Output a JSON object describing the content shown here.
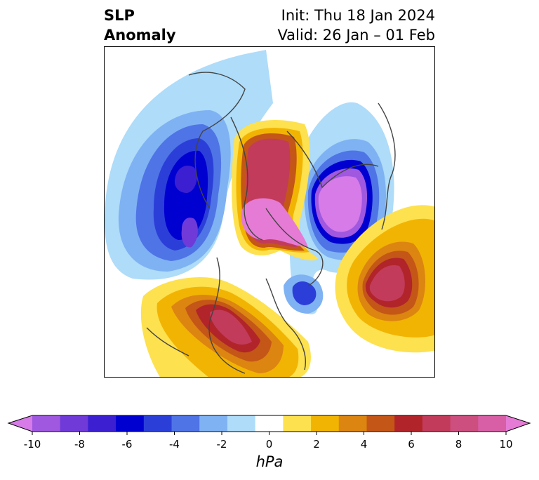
{
  "header": {
    "title_line1": "SLP",
    "title_line2": "Anomaly",
    "init": "Init: Thu 18 Jan 2024",
    "valid": "Valid: 26 Jan – 01 Feb"
  },
  "colorbar": {
    "unit": "hPa",
    "ticks": [
      "-10",
      "-8",
      "-6",
      "-4",
      "-2",
      "0",
      "2",
      "4",
      "6",
      "8",
      "10"
    ],
    "colors": [
      "#d67be8",
      "#9f58df",
      "#6f3ad8",
      "#3b1fd1",
      "#0000d0",
      "#2b3fd8",
      "#4f74e6",
      "#7fb2f3",
      "#aedcf9",
      "#ffffff",
      "#fde14f",
      "#f2b403",
      "#dc8511",
      "#c45617",
      "#b1242a",
      "#c23b5a",
      "#cc4f7f",
      "#d85fa6",
      "#e57bd5"
    ]
  }
}
